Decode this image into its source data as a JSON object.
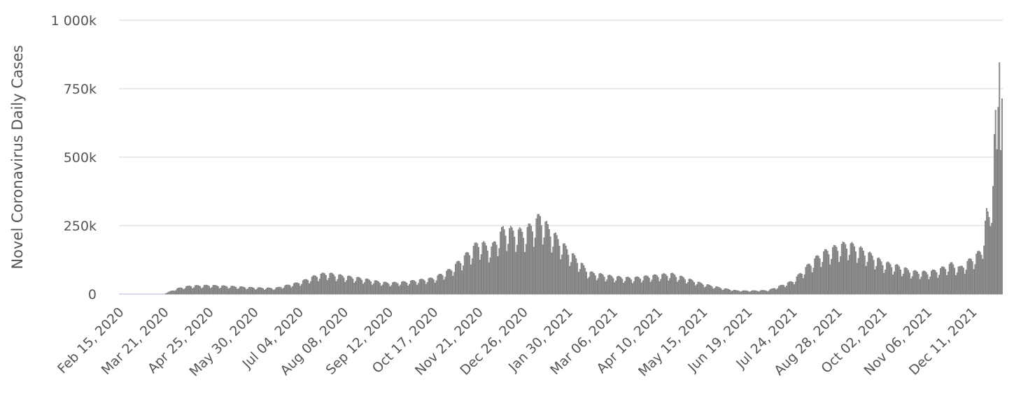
{
  "chart_data": {
    "type": "bar",
    "title": "",
    "ylabel": "Novel Coronavirus Daily Cases",
    "xlabel": "",
    "ylim": [
      0,
      1000000
    ],
    "y_ticks": [
      0,
      250000,
      500000,
      750000,
      1000000
    ],
    "y_tick_labels": [
      "0",
      "250k",
      "500k",
      "750k",
      "1 000k"
    ],
    "x_tick_labels": [
      "Feb 15, 2020",
      "Mar 21, 2020",
      "Apr 25, 2020",
      "May 30, 2020",
      "Jul 04, 2020",
      "Aug 08, 2020",
      "Sep 12, 2020",
      "Oct 17, 2020",
      "Nov 21, 2020",
      "Dec 26, 2020",
      "Jan 30, 2021",
      "Mar 06, 2021",
      "Apr 10, 2021",
      "May 15, 2021",
      "Jun 19, 2021",
      "Jul 24, 2021",
      "Aug 28, 2021",
      "Oct 02, 2021",
      "Nov 06, 2021",
      "Dec 11, 2021"
    ],
    "x_start": "Feb 15, 2020",
    "x_end": "Jan 03, 2022",
    "anchors": [
      [
        "Feb 15, 2020",
        0
      ],
      [
        "Mar 21, 2020",
        0
      ],
      [
        "Mar 25, 2020",
        8000
      ],
      [
        "Apr 01, 2020",
        20000
      ],
      [
        "Apr 10, 2020",
        28000
      ],
      [
        "Apr 25, 2020",
        30000
      ],
      [
        "May 10, 2020",
        27000
      ],
      [
        "May 30, 2020",
        22000
      ],
      [
        "Jun 15, 2020",
        20000
      ],
      [
        "Jul 04, 2020",
        40000
      ],
      [
        "Jul 18, 2020",
        65000
      ],
      [
        "Jul 25, 2020",
        72000
      ],
      [
        "Aug 08, 2020",
        62000
      ],
      [
        "Aug 20, 2020",
        55000
      ],
      [
        "Sep 05, 2020",
        42000
      ],
      [
        "Sep 12, 2020",
        38000
      ],
      [
        "Sep 25, 2020",
        42000
      ],
      [
        "Oct 17, 2020",
        55000
      ],
      [
        "Oct 30, 2020",
        85000
      ],
      [
        "Nov 10, 2020",
        130000
      ],
      [
        "Nov 21, 2020",
        180000
      ],
      [
        "Dec 01, 2020",
        160000
      ],
      [
        "Dec 10, 2020",
        225000
      ],
      [
        "Dec 26, 2020",
        215000
      ],
      [
        "Jan 02, 2021",
        240000
      ],
      [
        "Jan 08, 2021",
        270000
      ],
      [
        "Jan 15, 2021",
        225000
      ],
      [
        "Jan 30, 2021",
        150000
      ],
      [
        "Feb 08, 2021",
        110000
      ],
      [
        "Feb 15, 2021",
        75000
      ],
      [
        "Mar 06, 2021",
        60000
      ],
      [
        "Mar 20, 2021",
        55000
      ],
      [
        "Apr 10, 2021",
        65000
      ],
      [
        "Apr 20, 2021",
        70000
      ],
      [
        "May 01, 2021",
        55000
      ],
      [
        "May 15, 2021",
        35000
      ],
      [
        "May 30, 2021",
        20000
      ],
      [
        "Jun 10, 2021",
        12000
      ],
      [
        "Jun 19, 2021",
        11000
      ],
      [
        "Jul 05, 2021",
        13000
      ],
      [
        "Jul 24, 2021",
        45000
      ],
      [
        "Aug 05, 2021",
        100000
      ],
      [
        "Aug 15, 2021",
        140000
      ],
      [
        "Aug 28, 2021",
        165000
      ],
      [
        "Sep 05, 2021",
        175000
      ],
      [
        "Sep 15, 2021",
        155000
      ],
      [
        "Sep 25, 2021",
        130000
      ],
      [
        "Oct 02, 2021",
        110000
      ],
      [
        "Oct 15, 2021",
        95000
      ],
      [
        "Oct 25, 2021",
        78000
      ],
      [
        "Nov 06, 2021",
        75000
      ],
      [
        "Nov 15, 2021",
        85000
      ],
      [
        "Nov 25, 2021",
        105000
      ],
      [
        "Dec 01, 2021",
        90000
      ],
      [
        "Dec 11, 2021",
        125000
      ],
      [
        "Dec 18, 2021",
        150000
      ],
      [
        "Dec 22, 2021",
        280000
      ],
      [
        "Dec 25, 2021",
        260000
      ],
      [
        "Dec 27, 2021",
        480000
      ],
      [
        "Dec 29, 2021",
        600000
      ],
      [
        "Dec 30, 2021",
        480000
      ],
      [
        "Dec 31, 2021",
        650000
      ],
      [
        "Jan 01, 2022",
        890000
      ],
      [
        "Jan 02, 2022",
        750000
      ],
      [
        "Jan 03, 2022",
        870000
      ]
    ]
  }
}
